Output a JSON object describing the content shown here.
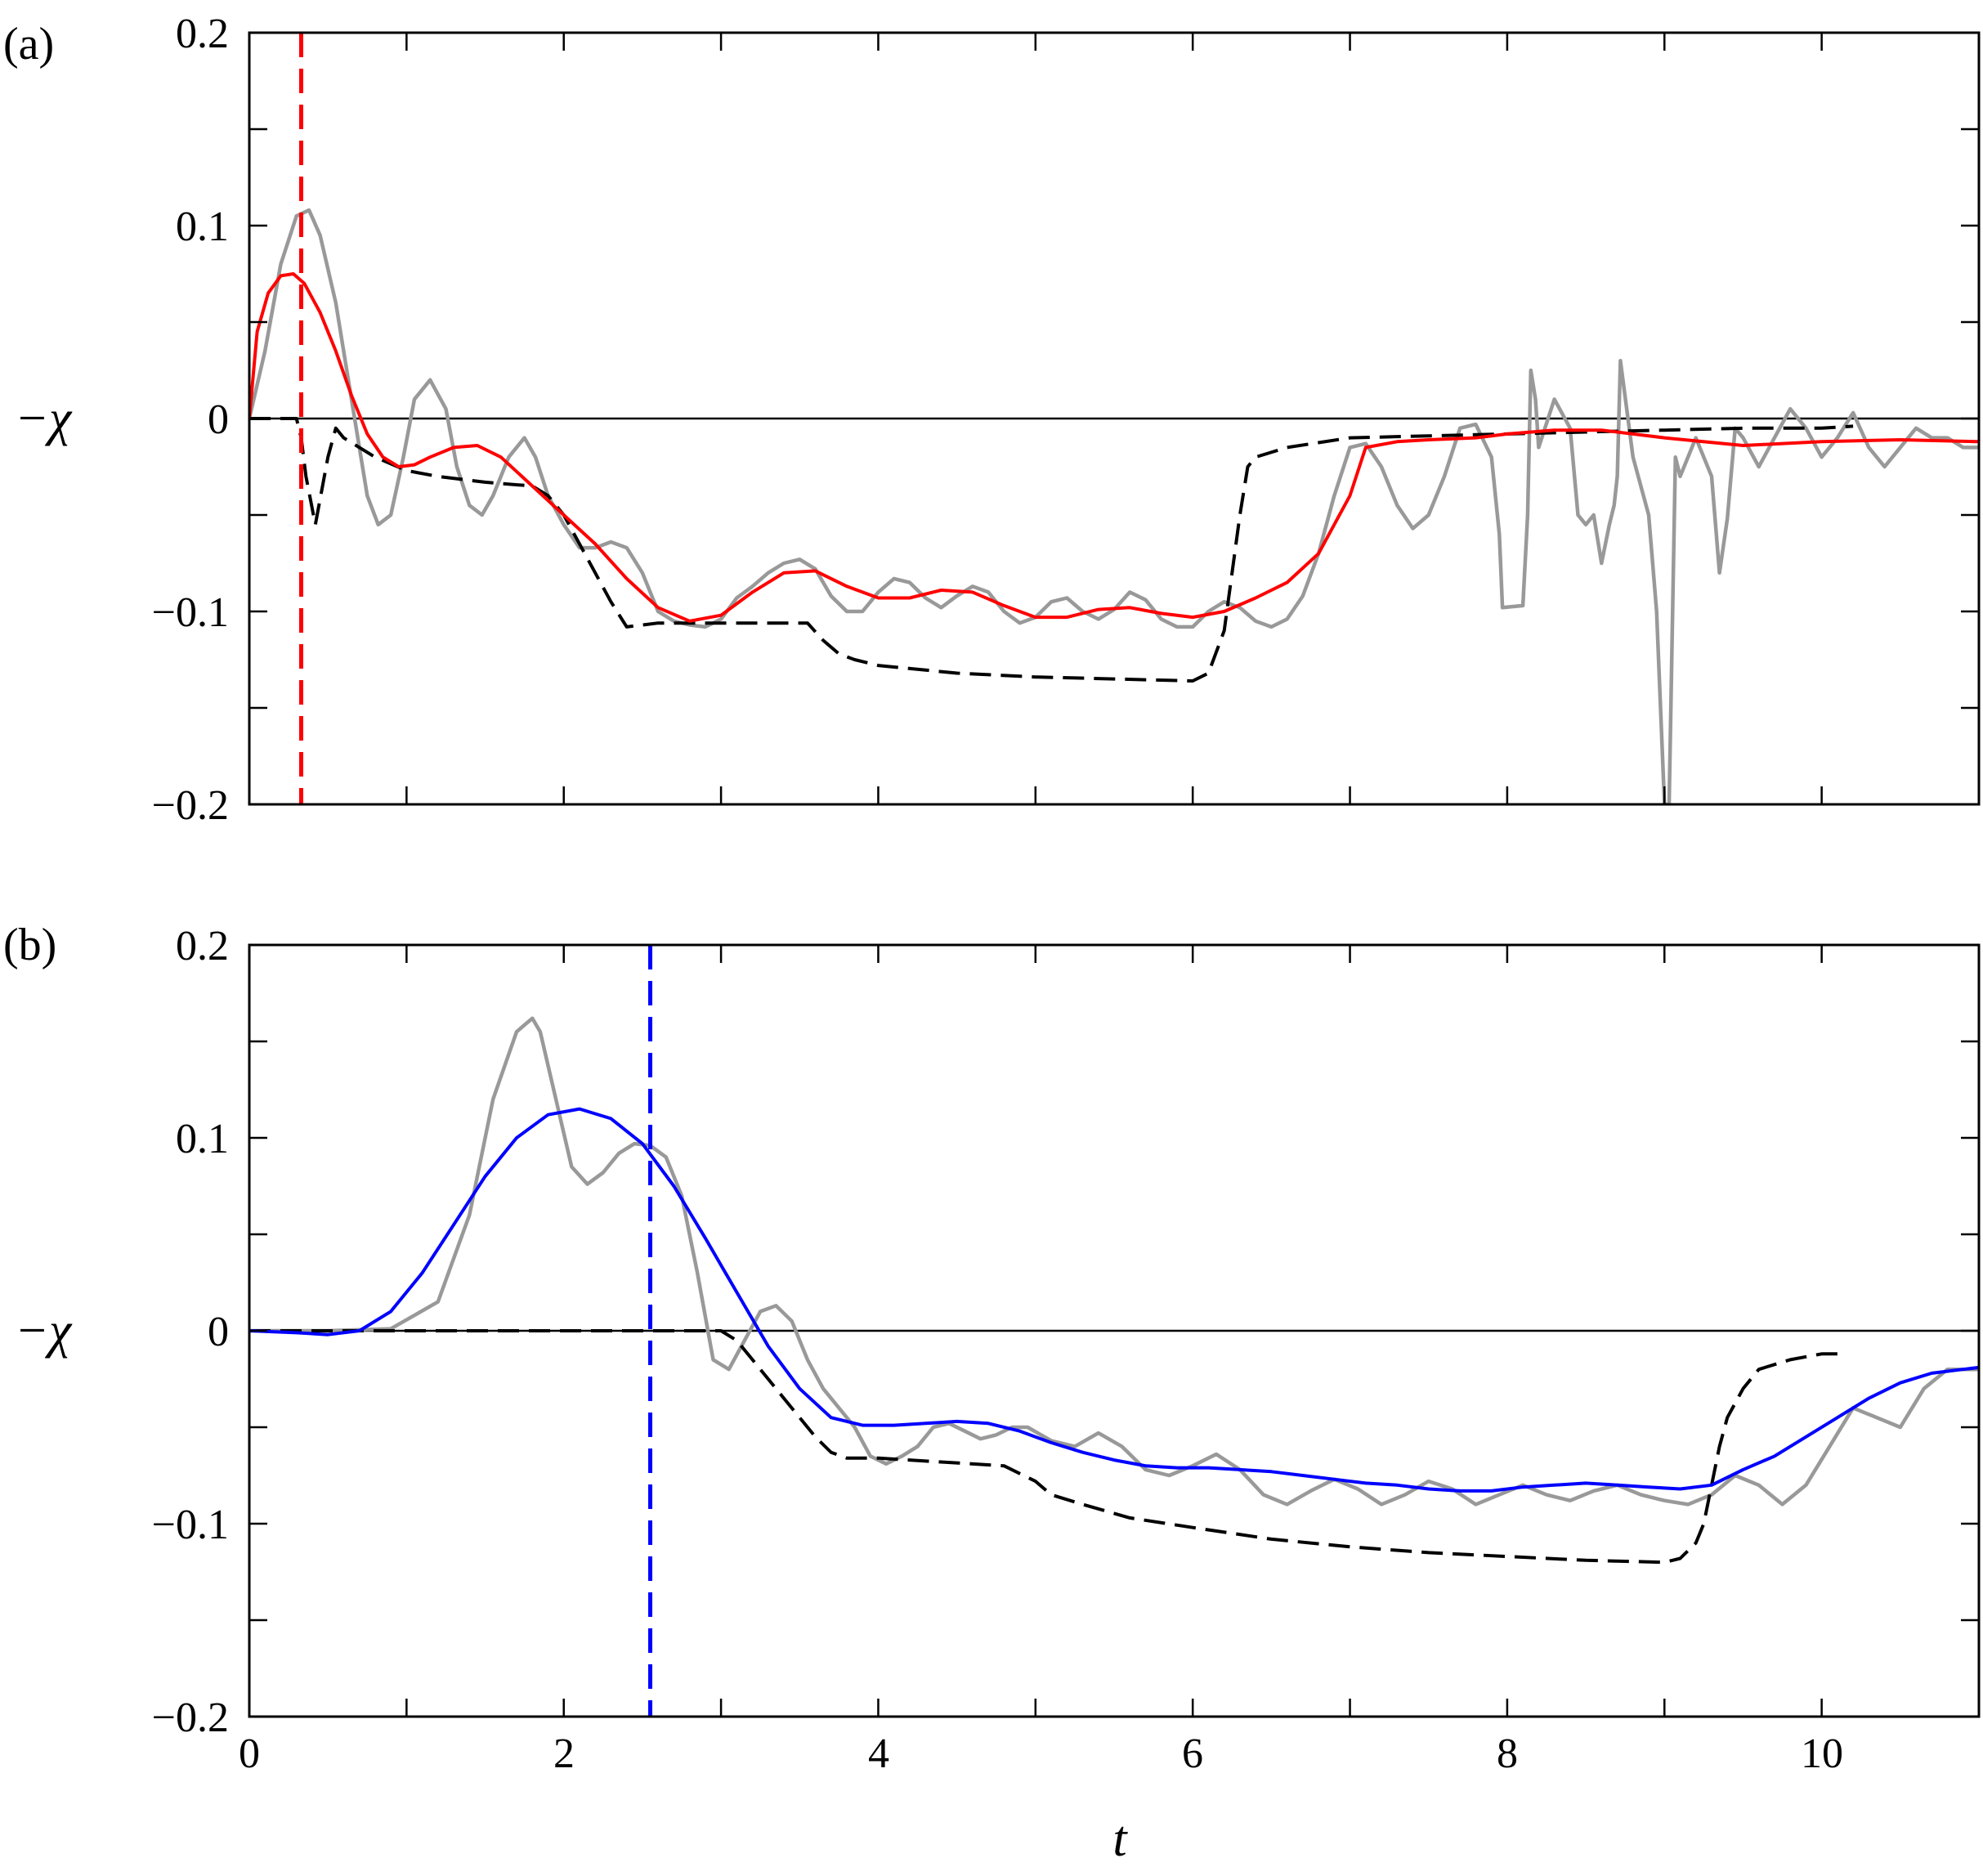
{
  "chart_data": [
    {
      "type": "line",
      "panel_label": "(a)",
      "ylabel": "−χ",
      "xlabel": "",
      "xlim": [
        0,
        11
      ],
      "ylim": [
        -0.2,
        0.2
      ],
      "yticks": [
        -0.2,
        -0.1,
        0,
        0.1,
        0.2
      ],
      "ytick_labels": [
        "−0.2",
        "−0.1",
        "0",
        "0.1",
        "0.2"
      ],
      "xticks": [
        0,
        2,
        4,
        6,
        8,
        10
      ],
      "xtick_labels": [],
      "reference_line_y": 0,
      "vline": {
        "x": 0.33,
        "color": "#ff0000",
        "style": "dashed"
      },
      "series": [
        {
          "color": "#999999",
          "style": "solid",
          "x": [
            0,
            0.1,
            0.2,
            0.3,
            0.38,
            0.45,
            0.55,
            0.65,
            0.75,
            0.82,
            0.9,
            0.98,
            1.05,
            1.15,
            1.25,
            1.32,
            1.4,
            1.48,
            1.55,
            1.65,
            1.75,
            1.82,
            1.9,
            2.0,
            2.1,
            2.2,
            2.3,
            2.4,
            2.5,
            2.6,
            2.7,
            2.8,
            2.9,
            3.0,
            3.1,
            3.2,
            3.3,
            3.4,
            3.5,
            3.6,
            3.7,
            3.8,
            3.9,
            4.0,
            4.1,
            4.2,
            4.3,
            4.4,
            4.5,
            4.6,
            4.7,
            4.8,
            4.9,
            5.0,
            5.1,
            5.2,
            5.3,
            5.4,
            5.5,
            5.6,
            5.7,
            5.8,
            5.9,
            6.0,
            6.1,
            6.2,
            6.3,
            6.4,
            6.5,
            6.6,
            6.7,
            6.8,
            6.9,
            7.0,
            7.1,
            7.2,
            7.3,
            7.4,
            7.5,
            7.6,
            7.7,
            7.8,
            7.9,
            7.95,
            7.97,
            8.1,
            8.13,
            8.15,
            8.18,
            8.2,
            8.3,
            8.4,
            8.45,
            8.5,
            8.55,
            8.6,
            8.65,
            8.68,
            8.7,
            8.72,
            8.8,
            8.9,
            8.95,
            9.0,
            9.03,
            9.07,
            9.1,
            9.2,
            9.3,
            9.35,
            9.4,
            9.45,
            9.5,
            9.6,
            9.7,
            9.8,
            9.9,
            10.0,
            10.1,
            10.2,
            10.3,
            10.4,
            10.5,
            10.6,
            10.7,
            10.8,
            10.9,
            11.0
          ],
          "y": [
            0.0,
            0.035,
            0.08,
            0.105,
            0.108,
            0.095,
            0.06,
            0.01,
            -0.04,
            -0.055,
            -0.05,
            -0.02,
            0.01,
            0.02,
            0.005,
            -0.025,
            -0.045,
            -0.05,
            -0.04,
            -0.02,
            -0.01,
            -0.02,
            -0.04,
            -0.055,
            -0.067,
            -0.067,
            -0.064,
            -0.067,
            -0.08,
            -0.1,
            -0.105,
            -0.107,
            -0.108,
            -0.104,
            -0.093,
            -0.087,
            -0.08,
            -0.075,
            -0.073,
            -0.078,
            -0.092,
            -0.1,
            -0.1,
            -0.09,
            -0.083,
            -0.085,
            -0.093,
            -0.098,
            -0.092,
            -0.087,
            -0.09,
            -0.1,
            -0.106,
            -0.103,
            -0.095,
            -0.093,
            -0.1,
            -0.104,
            -0.099,
            -0.09,
            -0.094,
            -0.104,
            -0.108,
            -0.108,
            -0.1,
            -0.095,
            -0.098,
            -0.105,
            -0.108,
            -0.104,
            -0.092,
            -0.07,
            -0.04,
            -0.015,
            -0.013,
            -0.025,
            -0.045,
            -0.057,
            -0.05,
            -0.03,
            -0.005,
            -0.003,
            -0.02,
            -0.06,
            -0.098,
            -0.097,
            -0.05,
            0.025,
            0.01,
            -0.015,
            0.01,
            -0.005,
            -0.05,
            -0.055,
            -0.05,
            -0.075,
            -0.055,
            -0.045,
            -0.03,
            0.03,
            -0.02,
            -0.05,
            -0.1,
            -0.2,
            -0.2,
            -0.02,
            -0.03,
            -0.01,
            -0.03,
            -0.08,
            -0.052,
            -0.005,
            -0.01,
            -0.025,
            -0.01,
            0.005,
            -0.005,
            -0.02,
            -0.01,
            0.003,
            -0.015,
            -0.025,
            -0.015,
            -0.005,
            -0.01,
            -0.01,
            -0.015,
            -0.015
          ]
        },
        {
          "color": "#000000",
          "style": "dashed",
          "x": [
            0,
            0.3,
            0.33,
            0.36,
            0.42,
            0.5,
            0.55,
            0.6,
            0.8,
            1.0,
            1.2,
            1.5,
            1.8,
            1.9,
            2.0,
            2.1,
            2.2,
            2.3,
            2.4,
            2.6,
            2.8,
            3.0,
            3.3,
            3.55,
            3.65,
            3.75,
            3.85,
            4.0,
            4.5,
            5.0,
            5.5,
            6.0,
            6.1,
            6.2,
            6.25,
            6.3,
            6.35,
            6.4,
            6.6,
            7.0,
            7.5,
            8.0,
            8.5,
            9.0,
            9.5,
            10.0,
            10.2
          ],
          "y": [
            0.0,
            0.0,
            -0.01,
            -0.03,
            -0.055,
            -0.02,
            -0.005,
            -0.01,
            -0.02,
            -0.027,
            -0.03,
            -0.033,
            -0.035,
            -0.04,
            -0.05,
            -0.065,
            -0.08,
            -0.095,
            -0.108,
            -0.106,
            -0.106,
            -0.106,
            -0.106,
            -0.106,
            -0.115,
            -0.122,
            -0.125,
            -0.128,
            -0.132,
            -0.134,
            -0.135,
            -0.136,
            -0.132,
            -0.11,
            -0.08,
            -0.05,
            -0.025,
            -0.02,
            -0.015,
            -0.01,
            -0.009,
            -0.008,
            -0.007,
            -0.006,
            -0.005,
            -0.005,
            -0.004
          ]
        },
        {
          "color": "#ff0000",
          "style": "solid",
          "x": [
            0,
            0.05,
            0.12,
            0.2,
            0.28,
            0.35,
            0.45,
            0.55,
            0.65,
            0.75,
            0.85,
            0.95,
            1.05,
            1.15,
            1.3,
            1.45,
            1.6,
            1.8,
            2.0,
            2.2,
            2.4,
            2.6,
            2.8,
            3.0,
            3.2,
            3.4,
            3.6,
            3.8,
            4.0,
            4.2,
            4.4,
            4.6,
            4.8,
            5.0,
            5.2,
            5.4,
            5.6,
            5.8,
            6.0,
            6.2,
            6.4,
            6.6,
            6.8,
            7.0,
            7.1,
            7.3,
            7.5,
            7.8,
            8.0,
            8.3,
            8.6,
            9.0,
            9.5,
            10.0,
            10.5,
            11.0
          ],
          "y": [
            0.0,
            0.045,
            0.065,
            0.074,
            0.075,
            0.07,
            0.055,
            0.035,
            0.012,
            -0.008,
            -0.02,
            -0.025,
            -0.024,
            -0.02,
            -0.015,
            -0.014,
            -0.02,
            -0.035,
            -0.05,
            -0.065,
            -0.083,
            -0.098,
            -0.105,
            -0.102,
            -0.09,
            -0.08,
            -0.079,
            -0.087,
            -0.093,
            -0.093,
            -0.089,
            -0.09,
            -0.097,
            -0.103,
            -0.103,
            -0.099,
            -0.098,
            -0.101,
            -0.103,
            -0.1,
            -0.093,
            -0.085,
            -0.07,
            -0.04,
            -0.015,
            -0.012,
            -0.011,
            -0.01,
            -0.008,
            -0.006,
            -0.006,
            -0.01,
            -0.014,
            -0.012,
            -0.011,
            -0.012
          ]
        }
      ]
    },
    {
      "type": "line",
      "panel_label": "(b)",
      "ylabel": "−χ",
      "xlabel": "t",
      "xlim": [
        0,
        11
      ],
      "ylim": [
        -0.2,
        0.2
      ],
      "yticks": [
        -0.2,
        -0.1,
        0,
        0.1,
        0.2
      ],
      "ytick_labels": [
        "−0.2",
        "−0.1",
        "0",
        "0.1",
        "0.2"
      ],
      "xticks": [
        0,
        2,
        4,
        6,
        8,
        10
      ],
      "xtick_labels": [
        "0",
        "2",
        "4",
        "6",
        "8",
        "10"
      ],
      "reference_line_y": 0,
      "vline": {
        "x": 2.55,
        "color": "#0000ff",
        "style": "dashed"
      },
      "series": [
        {
          "color": "#999999",
          "style": "solid",
          "x": [
            0,
            0.5,
            0.9,
            1.2,
            1.4,
            1.55,
            1.7,
            1.8,
            1.85,
            1.95,
            2.05,
            2.15,
            2.25,
            2.35,
            2.45,
            2.55,
            2.65,
            2.75,
            2.85,
            2.95,
            3.05,
            3.15,
            3.25,
            3.35,
            3.45,
            3.55,
            3.65,
            3.75,
            3.85,
            3.95,
            4.05,
            4.15,
            4.25,
            4.35,
            4.45,
            4.55,
            4.65,
            4.75,
            4.85,
            4.95,
            5.1,
            5.25,
            5.4,
            5.55,
            5.7,
            5.85,
            6.0,
            6.15,
            6.3,
            6.45,
            6.6,
            6.75,
            6.9,
            7.05,
            7.2,
            7.35,
            7.5,
            7.65,
            7.8,
            7.95,
            8.1,
            8.25,
            8.4,
            8.55,
            8.7,
            8.85,
            9.0,
            9.15,
            9.3,
            9.45,
            9.6,
            9.75,
            9.9,
            10.05,
            10.2,
            10.35,
            10.5,
            10.65,
            10.8,
            11.0
          ],
          "y": [
            0.0,
            0.0,
            0.001,
            0.015,
            0.06,
            0.12,
            0.155,
            0.162,
            0.155,
            0.12,
            0.085,
            0.076,
            0.082,
            0.092,
            0.097,
            0.096,
            0.09,
            0.07,
            0.03,
            -0.015,
            -0.02,
            -0.005,
            0.01,
            0.013,
            0.005,
            -0.015,
            -0.03,
            -0.04,
            -0.05,
            -0.065,
            -0.069,
            -0.065,
            -0.06,
            -0.05,
            -0.048,
            -0.052,
            -0.056,
            -0.054,
            -0.05,
            -0.05,
            -0.057,
            -0.06,
            -0.053,
            -0.06,
            -0.072,
            -0.075,
            -0.07,
            -0.064,
            -0.072,
            -0.085,
            -0.09,
            -0.083,
            -0.077,
            -0.082,
            -0.09,
            -0.085,
            -0.078,
            -0.082,
            -0.09,
            -0.085,
            -0.08,
            -0.085,
            -0.088,
            -0.083,
            -0.08,
            -0.085,
            -0.088,
            -0.09,
            -0.085,
            -0.075,
            -0.08,
            -0.09,
            -0.08,
            -0.06,
            -0.04,
            -0.045,
            -0.05,
            -0.03,
            -0.02,
            -0.02
          ]
        },
        {
          "color": "#000000",
          "style": "dashed",
          "x": [
            0,
            1.0,
            2.0,
            2.5,
            2.8,
            3.0,
            3.1,
            3.2,
            3.3,
            3.4,
            3.5,
            3.6,
            3.7,
            3.8,
            3.9,
            4.0,
            4.4,
            4.8,
            5.0,
            5.1,
            5.3,
            5.6,
            6.0,
            6.5,
            7.0,
            7.5,
            8.0,
            8.5,
            9.0,
            9.1,
            9.2,
            9.25,
            9.3,
            9.35,
            9.4,
            9.5,
            9.6,
            9.8,
            10.0,
            10.1
          ],
          "y": [
            0.0,
            0.0,
            0.0,
            0.0,
            0.0,
            0.0,
            -0.005,
            -0.015,
            -0.025,
            -0.035,
            -0.045,
            -0.055,
            -0.063,
            -0.066,
            -0.066,
            -0.066,
            -0.068,
            -0.07,
            -0.078,
            -0.085,
            -0.09,
            -0.097,
            -0.102,
            -0.108,
            -0.112,
            -0.115,
            -0.117,
            -0.119,
            -0.12,
            -0.118,
            -0.11,
            -0.1,
            -0.08,
            -0.06,
            -0.045,
            -0.03,
            -0.02,
            -0.015,
            -0.012,
            -0.012
          ]
        },
        {
          "color": "#0000ff",
          "style": "solid",
          "x": [
            0,
            0.3,
            0.5,
            0.7,
            0.9,
            1.1,
            1.3,
            1.5,
            1.7,
            1.9,
            2.1,
            2.3,
            2.5,
            2.7,
            2.9,
            3.1,
            3.3,
            3.5,
            3.7,
            3.9,
            4.1,
            4.3,
            4.5,
            4.7,
            4.9,
            5.1,
            5.3,
            5.5,
            5.7,
            5.9,
            6.1,
            6.3,
            6.5,
            6.7,
            6.9,
            7.1,
            7.3,
            7.5,
            7.7,
            7.9,
            8.1,
            8.3,
            8.5,
            8.7,
            8.9,
            9.1,
            9.3,
            9.5,
            9.7,
            9.9,
            10.1,
            10.3,
            10.5,
            10.7,
            10.9,
            11.0
          ],
          "y": [
            0.0,
            -0.001,
            -0.002,
            0.0,
            0.01,
            0.03,
            0.055,
            0.08,
            0.1,
            0.112,
            0.115,
            0.11,
            0.097,
            0.075,
            0.048,
            0.02,
            -0.008,
            -0.03,
            -0.045,
            -0.049,
            -0.049,
            -0.048,
            -0.047,
            -0.048,
            -0.052,
            -0.058,
            -0.063,
            -0.067,
            -0.07,
            -0.071,
            -0.071,
            -0.072,
            -0.073,
            -0.075,
            -0.077,
            -0.079,
            -0.08,
            -0.082,
            -0.083,
            -0.083,
            -0.081,
            -0.08,
            -0.079,
            -0.08,
            -0.081,
            -0.082,
            -0.08,
            -0.072,
            -0.065,
            -0.055,
            -0.045,
            -0.035,
            -0.027,
            -0.022,
            -0.02,
            -0.019
          ]
        }
      ]
    }
  ]
}
